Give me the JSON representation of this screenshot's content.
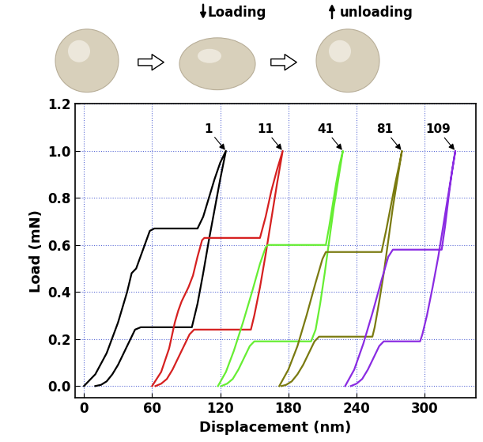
{
  "chart_data": {
    "type": "line",
    "diagram": {
      "loading_label": "Loading",
      "unloading_label": "unloading"
    },
    "x_label": "Displacement (nm)",
    "y_label": "Load (mN)",
    "xlim": [
      -8,
      345
    ],
    "ylim": [
      -0.05,
      1.2
    ],
    "xticks": [
      0,
      60,
      120,
      180,
      240,
      300
    ],
    "yticks": [
      {
        "value": 0,
        "label": "0.0"
      },
      {
        "value": 0.2,
        "label": "0.2"
      },
      {
        "value": 0.4,
        "label": "0.4"
      },
      {
        "value": 0.6,
        "label": "0.6"
      },
      {
        "value": 0.8,
        "label": "0.8"
      },
      {
        "value": 1.0,
        "label": "1.0"
      },
      {
        "value": 1.2,
        "label": "1.2"
      }
    ],
    "grid": true,
    "series": [
      {
        "name": "1",
        "color": "#000000",
        "x": [
          0,
          10,
          20,
          30,
          38,
          42,
          46,
          52,
          58,
          62,
          100,
          105,
          110,
          115,
          120,
          125,
          120,
          115,
          110,
          105,
          100,
          95,
          50,
          45,
          40,
          35,
          30,
          25,
          20,
          15,
          10
        ],
        "values": [
          0,
          0.05,
          0.14,
          0.27,
          0.4,
          0.48,
          0.5,
          0.58,
          0.66,
          0.67,
          0.67,
          0.72,
          0.8,
          0.88,
          0.95,
          1.0,
          0.88,
          0.75,
          0.62,
          0.48,
          0.35,
          0.25,
          0.25,
          0.24,
          0.19,
          0.14,
          0.09,
          0.05,
          0.02,
          0.005,
          0
        ]
      },
      {
        "name": "11",
        "color": "#d62020",
        "x": [
          60,
          68,
          75,
          80,
          83,
          86,
          88,
          92,
          96,
          100,
          104,
          106,
          155,
          160,
          165,
          170,
          175,
          170,
          165,
          160,
          155,
          150,
          147,
          97,
          93,
          88,
          83,
          78,
          73,
          68,
          63
        ],
        "values": [
          0,
          0.06,
          0.16,
          0.27,
          0.32,
          0.36,
          0.38,
          0.42,
          0.47,
          0.55,
          0.62,
          0.63,
          0.63,
          0.72,
          0.83,
          0.92,
          1.0,
          0.86,
          0.71,
          0.56,
          0.42,
          0.3,
          0.24,
          0.24,
          0.22,
          0.17,
          0.12,
          0.07,
          0.03,
          0.01,
          0
        ]
      },
      {
        "name": "41",
        "color": "#66ee33",
        "x": [
          118,
          125,
          132,
          140,
          148,
          155,
          160,
          162,
          213,
          216,
          219,
          222,
          225,
          228,
          224,
          220,
          216,
          212,
          208,
          204,
          200,
          150,
          146,
          141,
          136,
          131,
          126,
          121
        ],
        "values": [
          0,
          0.06,
          0.15,
          0.27,
          0.4,
          0.52,
          0.59,
          0.6,
          0.6,
          0.68,
          0.77,
          0.86,
          0.94,
          1.0,
          0.88,
          0.76,
          0.62,
          0.48,
          0.35,
          0.24,
          0.19,
          0.19,
          0.17,
          0.12,
          0.07,
          0.03,
          0.01,
          0
        ]
      },
      {
        "name": "81",
        "color": "#7a7a10",
        "x": [
          172,
          180,
          188,
          196,
          204,
          210,
          213,
          262,
          266,
          270,
          274,
          278,
          280,
          276,
          272,
          268,
          264,
          260,
          256,
          254,
          207,
          203,
          198,
          193,
          188,
          183,
          178,
          174
        ],
        "values": [
          0,
          0.07,
          0.17,
          0.3,
          0.44,
          0.54,
          0.57,
          0.57,
          0.66,
          0.76,
          0.86,
          0.95,
          1.0,
          0.88,
          0.76,
          0.62,
          0.48,
          0.36,
          0.25,
          0.21,
          0.21,
          0.19,
          0.14,
          0.09,
          0.05,
          0.02,
          0.005,
          0
        ]
      },
      {
        "name": "109",
        "color": "#8a2be2",
        "x": [
          230,
          238,
          246,
          254,
          262,
          268,
          272,
          315,
          318,
          321,
          324,
          327,
          322,
          317,
          312,
          307,
          302,
          298,
          296,
          264,
          260,
          255,
          250,
          245,
          240,
          235
        ],
        "values": [
          0,
          0.07,
          0.18,
          0.31,
          0.45,
          0.55,
          0.58,
          0.58,
          0.68,
          0.8,
          0.91,
          1.0,
          0.85,
          0.7,
          0.55,
          0.42,
          0.3,
          0.22,
          0.19,
          0.19,
          0.17,
          0.12,
          0.07,
          0.03,
          0.01,
          0
        ]
      }
    ]
  }
}
